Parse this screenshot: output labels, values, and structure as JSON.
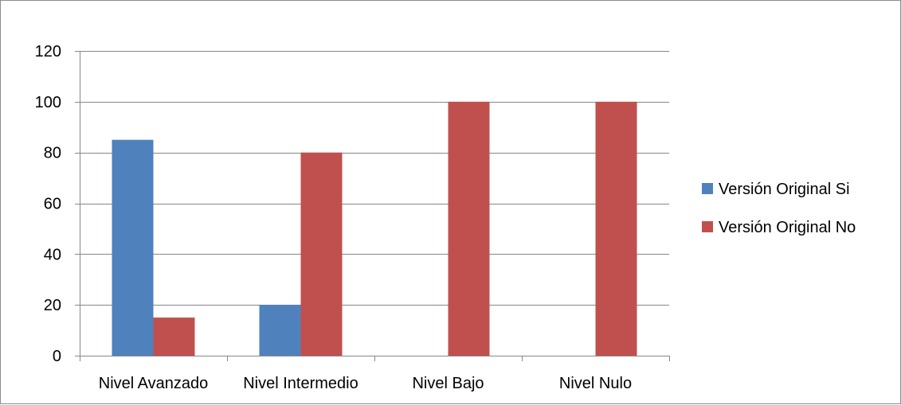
{
  "chart_data": {
    "type": "bar",
    "title": "",
    "xlabel": "",
    "ylabel": "",
    "categories": [
      "Nivel Avanzado",
      "Nivel Intermedio",
      "Nivel Bajo",
      "Nivel Nulo"
    ],
    "series": [
      {
        "name": "Versión Original Si",
        "values": [
          85,
          20,
          0,
          0
        ],
        "color": "#4f81bd"
      },
      {
        "name": "Versión Original No",
        "values": [
          15,
          80,
          100,
          100
        ],
        "color": "#c0504d"
      }
    ],
    "ylim": [
      0,
      120
    ],
    "yticks": [
      0,
      20,
      40,
      60,
      80,
      100,
      120
    ],
    "grid": true,
    "legend_position": "right"
  }
}
